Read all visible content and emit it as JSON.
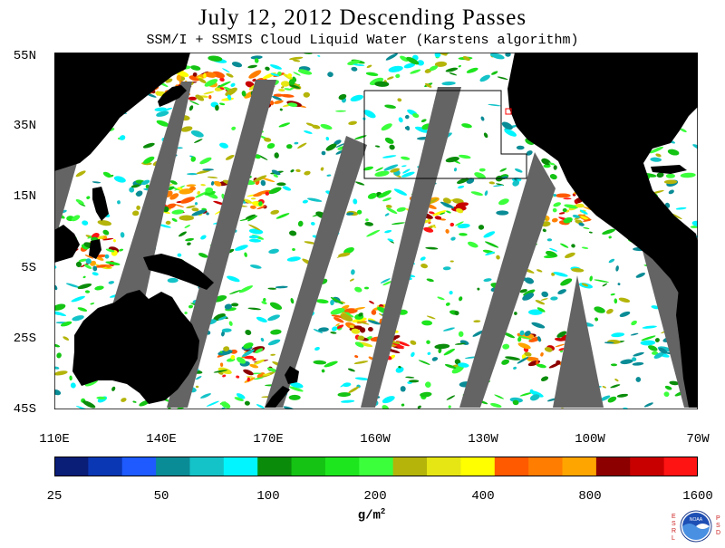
{
  "title": "July 12, 2012  Descending Passes",
  "subtitle": "SSM/I + SSMIS Cloud Liquid Water (Karstens algorithm)",
  "latitude_labels": [
    "55N",
    "35N",
    "15N",
    "5S",
    "25S",
    "45S"
  ],
  "longitude_labels": [
    "110E",
    "140E",
    "170E",
    "160W",
    "130W",
    "100W",
    "70W"
  ],
  "colorbar": {
    "colors": [
      "#0a1e78",
      "#0a37b4",
      "#1e5aff",
      "#0a8c96",
      "#14c3c8",
      "#00f5ff",
      "#0a8c0a",
      "#14c314",
      "#1ee61e",
      "#3cff3c",
      "#b4b40a",
      "#e6e614",
      "#ffff00",
      "#ff5a00",
      "#ff7d00",
      "#ffa500",
      "#8c0000",
      "#c80000",
      "#ff1414"
    ],
    "tick_labels": [
      "25",
      "50",
      "100",
      "200",
      "400",
      "800",
      "1600"
    ],
    "units": "g/m",
    "units_superscript": "2"
  },
  "logo": {
    "left_letters": "ESRL",
    "right_letters": "PSD",
    "center_text": "NOAA"
  },
  "colors": {
    "land": "#000000",
    "no_data_swath": "#646464",
    "ocean_clear": "#ffffff"
  }
}
